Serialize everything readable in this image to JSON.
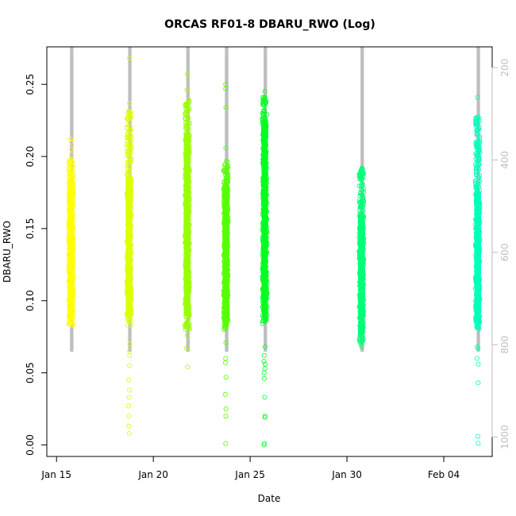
{
  "chart_data": {
    "type": "scatter",
    "title": "ORCAS RF01-8 DBARU_RWO (Log)",
    "xlabel": "Date",
    "ylabel": "DBARU_RWO",
    "x_scale": "date",
    "xlim": [
      "2016-01-14 12:00",
      "2016-02-06 12:00"
    ],
    "ylim": [
      -0.008,
      0.276
    ],
    "y_ticks": [
      0.0,
      0.05,
      0.1,
      0.15,
      0.2,
      0.25
    ],
    "y_tick_labels": [
      "0.00",
      "0.05",
      "0.10",
      "0.15",
      "0.20",
      "0.25"
    ],
    "x_ticks": [
      "2016-01-15",
      "2016-01-20",
      "2016-01-25",
      "2016-01-30",
      "2016-02-04"
    ],
    "x_tick_labels": [
      "Jan 15",
      "Jan 20",
      "Jan 25",
      "Jan 30",
      "Feb 04"
    ],
    "secondary_axis": {
      "side": "right",
      "reversed": true,
      "ylim": [
        1042,
        155
      ],
      "ticks": [
        200,
        400,
        600,
        800,
        1000
      ],
      "tick_labels": [
        "200",
        "400",
        "600",
        "800",
        "1000"
      ],
      "color": "#bebebe"
    },
    "grid": false,
    "marker": "open-circle",
    "series": [
      {
        "flight": 1,
        "date": "2016-01-15",
        "x_center": "2016-01-15 18:00",
        "color": "#ffff00",
        "core_low": 0.082,
        "core_high": 0.198,
        "dense_low": 0.088,
        "dense_high": 0.18,
        "outliers": [
          0.212,
          0.21,
          0.205,
          0.201
        ]
      },
      {
        "flight": 2,
        "date": "2016-01-18",
        "x_center": "2016-01-18 18:00",
        "color": "#ddff00",
        "core_low": 0.082,
        "core_high": 0.232,
        "dense_low": 0.09,
        "dense_high": 0.185,
        "outliers": [
          0.268,
          0.237,
          0.07,
          0.065,
          0.062,
          0.055,
          0.045,
          0.038,
          0.033,
          0.027,
          0.02,
          0.013,
          0.008
        ]
      },
      {
        "flight": 3,
        "date": "2016-01-21",
        "x_center": "2016-01-21 18:00",
        "color": "#99ff00",
        "core_low": 0.08,
        "core_high": 0.24,
        "dense_low": 0.09,
        "dense_high": 0.215,
        "outliers": [
          0.257,
          0.246,
          0.076,
          0.067,
          0.054
        ]
      },
      {
        "flight": 4,
        "date": "2016-01-23",
        "x_center": "2016-01-23 18:00",
        "color": "#55ff00",
        "core_low": 0.08,
        "core_high": 0.198,
        "dense_low": 0.085,
        "dense_high": 0.18,
        "outliers": [
          0.25,
          0.247,
          0.234,
          0.206,
          0.071,
          0.06,
          0.057,
          0.047,
          0.035,
          0.025,
          0.02,
          0.001
        ]
      },
      {
        "flight": 5,
        "date": "2016-01-25",
        "x_center": "2016-01-25 18:00",
        "color": "#00ff22",
        "core_low": 0.082,
        "core_high": 0.242,
        "dense_low": 0.09,
        "dense_high": 0.225,
        "outliers": [
          0.245,
          0.068,
          0.062,
          0.058,
          0.056,
          0.053,
          0.05,
          0.046,
          0.033,
          0.02,
          0.019,
          0.001,
          0.0
        ]
      },
      {
        "flight": 6,
        "date": "2016-01-30",
        "x_center": "2016-01-30 18:00",
        "color": "#00ff77",
        "core_low": 0.07,
        "core_high": 0.192,
        "dense_low": 0.078,
        "dense_high": 0.16,
        "outliers": [
          0.192,
          0.19,
          0.188,
          0.072,
          0.069,
          0.068
        ]
      },
      {
        "flight": 7,
        "date": "2016-02-05",
        "x_center": "2016-02-05 18:00",
        "color": "#00ffbb",
        "core_low": 0.08,
        "core_high": 0.228,
        "dense_low": 0.085,
        "dense_high": 0.175,
        "outliers": [
          0.241,
          0.227,
          0.068,
          0.067,
          0.06,
          0.056,
          0.043,
          0.006,
          0.001
        ]
      }
    ]
  }
}
